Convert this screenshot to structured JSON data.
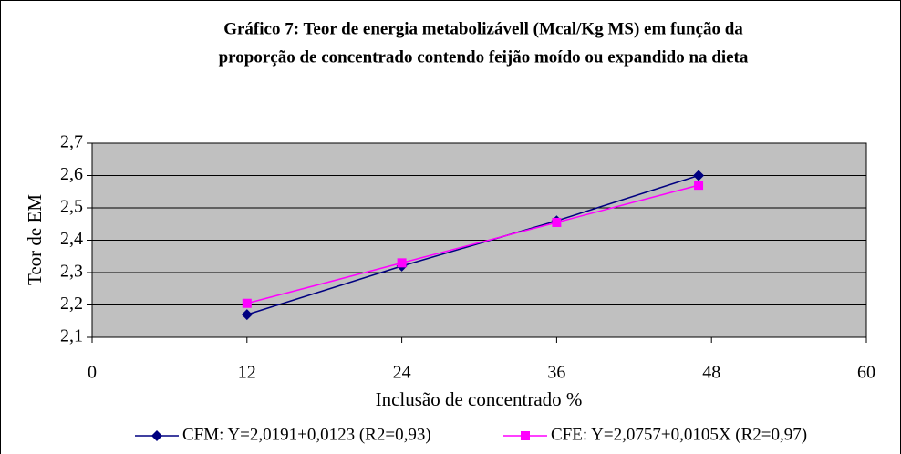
{
  "chart_data": {
    "type": "line",
    "title_lines": [
      "Gráfico 7: Teor de energia metabolizávell (Mcal/Kg MS) em função da",
      "proporção de concentrado contendo feijão moído ou expandido na dieta"
    ],
    "x_label": "Inclusão de concentrado %",
    "y_label": "Teor de EM",
    "x": [
      12,
      24,
      36,
      47
    ],
    "series": [
      {
        "name": "CFM: Y=2,0191+0,0123 (R2=0,93)",
        "color": "#000080",
        "marker": "diamond",
        "values": [
          2.17,
          2.32,
          2.46,
          2.6
        ]
      },
      {
        "name": "CFE: Y=2,0757+0,0105X (R2=0,97)",
        "color": "#ff00ff",
        "marker": "square",
        "values": [
          2.205,
          2.33,
          2.455,
          2.57
        ]
      }
    ],
    "xlim": [
      0,
      60
    ],
    "xticks": [
      0,
      12,
      24,
      36,
      48,
      60
    ],
    "ylim": [
      2.1,
      2.7
    ],
    "yticks": [
      {
        "value": 2.1,
        "label": "2,1"
      },
      {
        "value": 2.2,
        "label": "2,2"
      },
      {
        "value": 2.3,
        "label": "2,3"
      },
      {
        "value": 2.4,
        "label": "2,4"
      },
      {
        "value": 2.5,
        "label": "2,5"
      },
      {
        "value": 2.6,
        "label": "2,6"
      },
      {
        "value": 2.7,
        "label": "2,7"
      }
    ],
    "grid": true,
    "plot_background": "#c0c0c0",
    "legend_position": "bottom"
  }
}
